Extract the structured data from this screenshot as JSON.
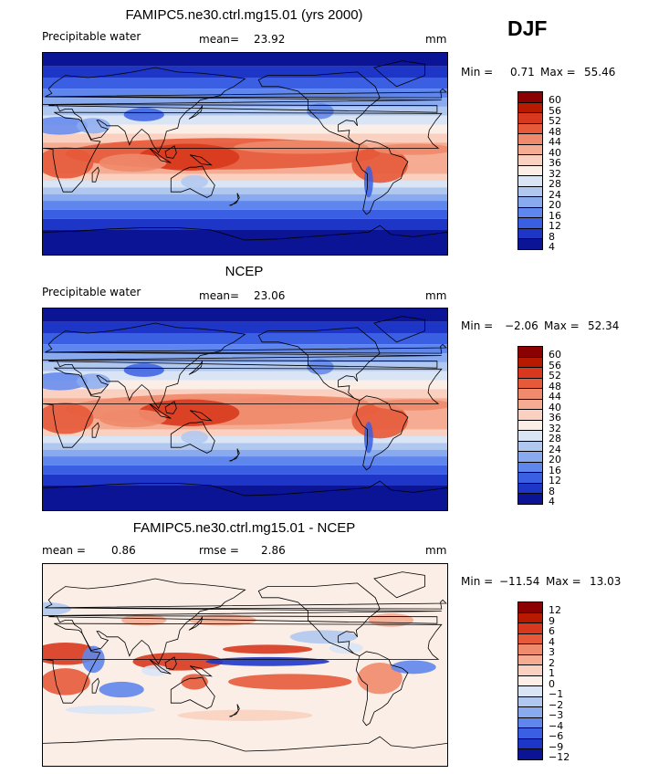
{
  "season": "DJF",
  "panels": [
    {
      "title": "FAMIPC5.ne30.ctrl.mg15.01 (yrs 2000)",
      "left_label": "Precipitable water",
      "mean_label": "mean=",
      "mean_value": "23.92",
      "units": "mm",
      "min_label": "Min =",
      "min_value": "0.71",
      "max_label": "Max =",
      "max_value": "55.46"
    },
    {
      "title": "NCEP",
      "left_label": "Precipitable water",
      "mean_label": "mean=",
      "mean_value": "23.06",
      "units": "mm",
      "min_label": "Min =",
      "min_value": "−2.06",
      "max_label": "Max =",
      "max_value": "52.34"
    },
    {
      "title": "FAMIPC5.ne30.ctrl.mg15.01 - NCEP",
      "left_label": "mean =",
      "mean_label": "rmse =",
      "mean_value": "2.86",
      "left_value": "0.86",
      "units": "mm",
      "min_label": "Min =",
      "min_value": "−11.54",
      "max_label": "Max =",
      "max_value": "13.03"
    }
  ],
  "chart_data": [
    {
      "type": "heatmap",
      "title": "FAMIPC5.ne30.ctrl.mg15.01 (yrs 2000)",
      "variable": "Precipitable water",
      "units": "mm",
      "mean": 23.92,
      "min": 0.71,
      "max": 55.46,
      "colorbar_levels": [
        "60",
        "56",
        "52",
        "48",
        "44",
        "40",
        "36",
        "32",
        "28",
        "24",
        "20",
        "16",
        "12",
        "8",
        "4"
      ],
      "colorbar_colors": [
        "#8b0000",
        "#b81a00",
        "#d8381d",
        "#e65a3a",
        "#f08a6c",
        "#f5ac92",
        "#fad1c0",
        "#fbeee7",
        "#d9e4f5",
        "#b0c8f0",
        "#8aaaf0",
        "#5f86ec",
        "#3a5fe2",
        "#1e36c8",
        "#0a1494"
      ]
    },
    {
      "type": "heatmap",
      "title": "NCEP",
      "variable": "Precipitable water",
      "units": "mm",
      "mean": 23.06,
      "min": -2.06,
      "max": 52.34,
      "colorbar_levels": [
        "60",
        "56",
        "52",
        "48",
        "44",
        "40",
        "36",
        "32",
        "28",
        "24",
        "20",
        "16",
        "12",
        "8",
        "4"
      ],
      "colorbar_colors": [
        "#8b0000",
        "#b81a00",
        "#d8381d",
        "#e65a3a",
        "#f08a6c",
        "#f5ac92",
        "#fad1c0",
        "#fbeee7",
        "#d9e4f5",
        "#b0c8f0",
        "#8aaaf0",
        "#5f86ec",
        "#3a5fe2",
        "#1e36c8",
        "#0a1494"
      ]
    },
    {
      "type": "heatmap",
      "title": "FAMIPC5.ne30.ctrl.mg15.01 - NCEP",
      "units": "mm",
      "mean": 0.86,
      "rmse": 2.86,
      "min": -11.54,
      "max": 13.03,
      "colorbar_levels": [
        "12",
        "9",
        "6",
        "4",
        "3",
        "2",
        "1",
        "0",
        "−1",
        "−2",
        "−3",
        "−4",
        "−6",
        "−9",
        "−12"
      ],
      "colorbar_colors": [
        "#8b0000",
        "#b81a00",
        "#d8381d",
        "#e65a3a",
        "#f08a6c",
        "#f5ac92",
        "#fad1c0",
        "#fbeee7",
        "#d9e4f5",
        "#b0c8f0",
        "#8aaaf0",
        "#5f86ec",
        "#3a5fe2",
        "#1e36c8",
        "#0a1494"
      ]
    }
  ]
}
